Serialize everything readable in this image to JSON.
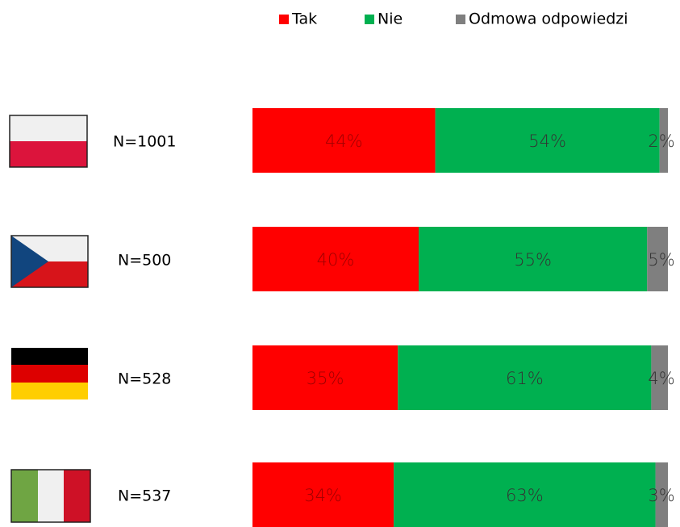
{
  "chart_data": {
    "type": "stacked-bar",
    "categories": [
      "N=1001",
      "N=500",
      "N=528",
      "N=537"
    ],
    "series": [
      {
        "name": "Tak",
        "color": "#ff0000",
        "values": [
          44,
          40,
          35,
          34
        ],
        "value_labels": [
          "44%",
          "40%",
          "35%",
          "34%"
        ]
      },
      {
        "name": "Nie",
        "color": "#00b050",
        "values": [
          54,
          55,
          61,
          63
        ],
        "value_labels": [
          "54%",
          "55%",
          "61%",
          "63%"
        ]
      },
      {
        "name": "Odmowa odpowiedzi",
        "color": "#7f7f7f",
        "values": [
          2,
          5,
          4,
          3
        ],
        "value_labels": [
          "2%",
          "5%",
          "4%",
          "3%"
        ]
      }
    ],
    "xlim": [
      0,
      100
    ],
    "legend": "top"
  }
}
